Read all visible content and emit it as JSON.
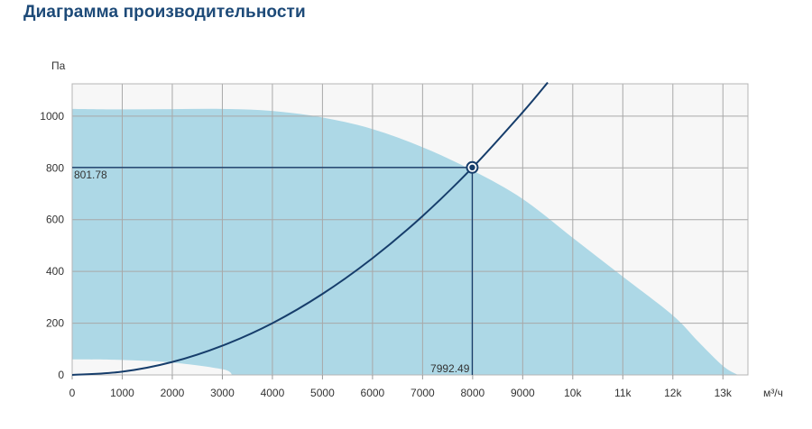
{
  "page": {
    "title": "Диаграмма производительности"
  },
  "chart_data": {
    "type": "area",
    "title": "",
    "xlabel": "м³/ч",
    "ylabel": "Па",
    "xlim": [
      0,
      13500
    ],
    "ylim": [
      0,
      1125
    ],
    "grid": true,
    "x_ticks": [
      0,
      1000,
      2000,
      3000,
      4000,
      5000,
      6000,
      7000,
      8000,
      9000,
      10000,
      11000,
      12000,
      13000
    ],
    "x_tick_labels": [
      "0",
      "1000",
      "2000",
      "3000",
      "4000",
      "5000",
      "6000",
      "7000",
      "8000",
      "9000",
      "10k",
      "11k",
      "12k",
      "13k"
    ],
    "y_ticks": [
      0,
      200,
      400,
      600,
      800,
      1000
    ],
    "y_tick_labels": [
      "0",
      "200",
      "400",
      "600",
      "800",
      "1000"
    ],
    "colors": {
      "area": "#add8e6",
      "system_curve": "#163d6b",
      "marker": "#163d6b",
      "plot_background": "#f7f7f7",
      "grid": "#a8a8a8"
    },
    "series": [
      {
        "kind": "area",
        "upper": {
          "x": [
            0,
            1000,
            2000,
            3000,
            4000,
            5000,
            6000,
            7000,
            8000,
            9000,
            10000,
            11000,
            12000,
            12500,
            13000,
            13300
          ],
          "y": [
            1028,
            1026,
            1027,
            1028,
            1020,
            995,
            950,
            880,
            790,
            680,
            530,
            380,
            230,
            130,
            35,
            0
          ]
        },
        "lower": {
          "x": [
            0,
            1000,
            2000,
            3000,
            3200
          ],
          "y": [
            60,
            58,
            48,
            22,
            0
          ]
        }
      },
      {
        "kind": "line",
        "x": [
          0,
          1000,
          2000,
          3000,
          4000,
          5000,
          6000,
          7000,
          8000,
          9000,
          9500
        ],
        "y": [
          0,
          12.5,
          50,
          113,
          200,
          313,
          451,
          614,
          802,
          1015,
          1130
        ]
      }
    ],
    "operating_point": {
      "x": 7992.49,
      "y": 801.78,
      "x_label": "7992.49",
      "y_label": "801.78"
    }
  }
}
